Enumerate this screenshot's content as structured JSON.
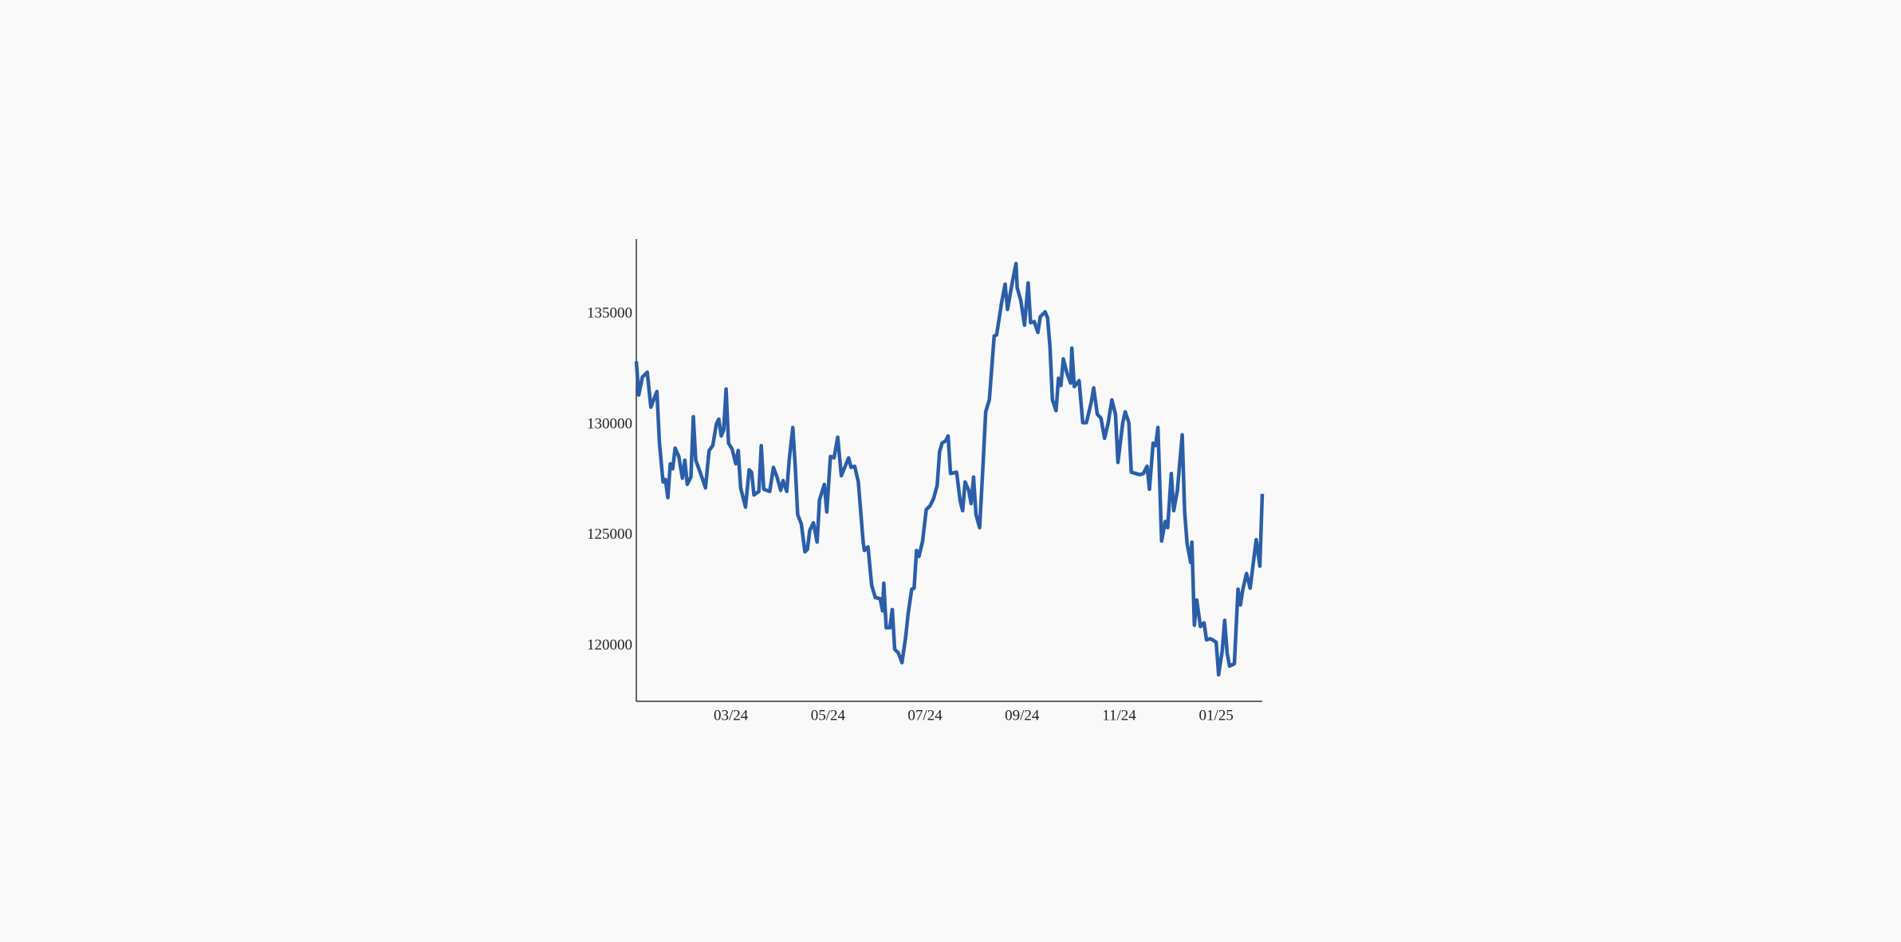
{
  "chart_data": {
    "type": "line",
    "x": [
      0.05,
      0.1,
      0.175,
      0.275,
      0.35,
      0.425,
      0.475,
      0.525,
      0.6,
      0.65,
      0.7,
      0.75,
      0.8,
      0.85,
      0.925,
      1,
      1.05,
      1.1,
      1.175,
      1.225,
      1.275,
      1.375,
      1.475,
      1.55,
      1.625,
      1.7,
      1.75,
      1.8,
      1.85,
      1.9,
      1.95,
      2.025,
      2.1,
      2.15,
      2.2,
      2.3,
      2.375,
      2.425,
      2.475,
      2.575,
      2.625,
      2.675,
      2.8,
      2.875,
      2.95,
      3.025,
      3.075,
      3.15,
      3.2,
      3.275,
      3.325,
      3.375,
      3.45,
      3.525,
      3.575,
      3.625,
      3.7,
      3.775,
      3.825,
      3.925,
      3.975,
      4.05,
      4.125,
      4.2,
      4.275,
      4.375,
      4.425,
      4.475,
      4.55,
      4.625,
      4.725,
      4.75,
      4.825,
      4.9,
      4.975,
      5.075,
      5.125,
      5.15,
      5.2,
      5.275,
      5.325,
      5.375,
      5.45,
      5.525,
      5.6,
      5.65,
      5.725,
      5.775,
      5.825,
      5.875,
      5.95,
      6.025,
      6.1,
      6.175,
      6.25,
      6.3,
      6.35,
      6.425,
      6.475,
      6.525,
      6.65,
      6.725,
      6.775,
      6.825,
      6.9,
      6.95,
      7,
      7.05,
      7.125,
      7.2,
      7.25,
      7.325,
      7.425,
      7.475,
      7.575,
      7.65,
      7.7,
      7.8,
      7.875,
      7.9,
      7.975,
      8.05,
      8.125,
      8.175,
      8.25,
      8.325,
      8.375,
      8.475,
      8.525,
      8.575,
      8.625,
      8.7,
      8.75,
      8.8,
      8.85,
      8.925,
      9,
      9.025,
      9.075,
      9.175,
      9.25,
      9.325,
      9.425,
      9.475,
      9.55,
      9.625,
      9.7,
      9.775,
      9.85,
      9.925,
      9.975,
      10.075,
      10.125,
      10.2,
      10.25,
      10.35,
      10.425,
      10.5,
      10.575,
      10.625,
      10.7,
      10.75,
      10.8,
      10.875,
      10.95,
      11,
      11.075,
      11.125,
      11.2,
      11.3,
      11.35,
      11.4,
      11.475,
      11.5,
      11.55,
      11.6,
      11.675,
      11.75,
      11.8,
      11.875,
      11.925,
      12,
      12.05,
      12.125,
      12.175,
      12.225,
      12.275,
      12.375,
      12.45,
      12.5,
      12.55,
      12.625,
      12.7,
      12.825,
      12.9,
      12.95
    ],
    "series": [
      {
        "color": "#2a5ea8",
        "values": [
          132870,
          131350,
          132160,
          132380,
          130800,
          131240,
          131510,
          129220,
          127420,
          127530,
          126710,
          128240,
          128020,
          128950,
          128570,
          127590,
          128400,
          127310,
          127640,
          130370,
          128400,
          127800,
          127150,
          128840,
          129060,
          130040,
          130260,
          129500,
          129770,
          131620,
          129170,
          128900,
          128240,
          128840,
          127150,
          126280,
          127970,
          127860,
          126830,
          126990,
          129060,
          127090,
          126990,
          128080,
          127640,
          127040,
          127480,
          126990,
          128400,
          129880,
          128130,
          125950,
          125520,
          124260,
          124370,
          125240,
          125570,
          124700,
          126610,
          127310,
          126060,
          128570,
          128510,
          129440,
          127700,
          128240,
          128510,
          128080,
          128130,
          127420,
          124700,
          124320,
          124480,
          122740,
          122190,
          122140,
          121590,
          122840,
          120830,
          120830,
          121650,
          119850,
          119690,
          119250,
          120390,
          121430,
          122570,
          122620,
          124320,
          124050,
          124750,
          126170,
          126330,
          126660,
          127260,
          128790,
          129170,
          129280,
          129500,
          127800,
          127860,
          126550,
          126120,
          127420,
          127040,
          126440,
          127640,
          125950,
          125350,
          128400,
          130590,
          131130,
          134020,
          134070,
          135490,
          136360,
          135220,
          136470,
          137290,
          136200,
          135600,
          134510,
          136420,
          134620,
          134670,
          134180,
          134890,
          135110,
          134840,
          133530,
          131130,
          130640,
          132110,
          131780,
          132980,
          132330,
          131890,
          133470,
          131730,
          132000,
          130100,
          130100,
          131020,
          131670,
          130480,
          130310,
          129390,
          130100,
          131130,
          130480,
          128300,
          130100,
          130590,
          130100,
          127860,
          127800,
          127750,
          127800,
          128130,
          127090,
          129170,
          129060,
          129880,
          124750,
          125630,
          125350,
          127800,
          126120,
          127040,
          129550,
          126060,
          124640,
          123770,
          124700,
          120940,
          122080,
          120880,
          121050,
          120280,
          120330,
          120280,
          120170,
          118700,
          119790,
          121160,
          119690,
          119090,
          119200,
          122570,
          121860,
          122570,
          123280,
          122620,
          124810,
          123610,
          126880
        ]
      }
    ],
    "xlim": [
      0.05,
      12.95
    ],
    "xticks": [
      {
        "value": 2,
        "label": "03/24"
      },
      {
        "value": 4,
        "label": "05/24"
      },
      {
        "value": 6,
        "label": "07/24"
      },
      {
        "value": 8,
        "label": "09/24"
      },
      {
        "value": 10,
        "label": "11/24"
      },
      {
        "value": 12,
        "label": "01/25"
      }
    ],
    "ylim": [
      117500,
      138400
    ],
    "yticks": [
      120000,
      125000,
      130000,
      135000
    ]
  }
}
